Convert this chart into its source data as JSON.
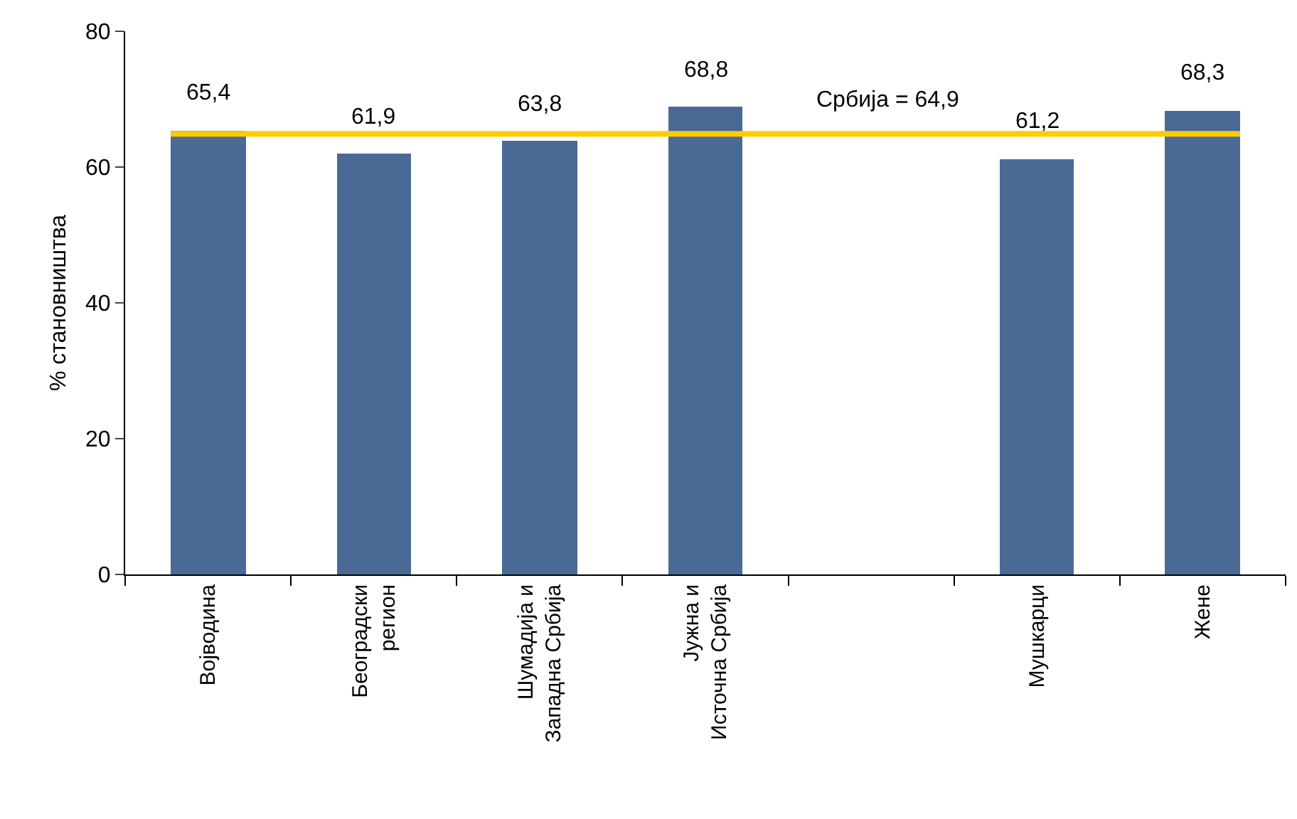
{
  "chart_data": {
    "type": "bar",
    "ylabel": "% становништва",
    "categories": [
      "Војводина",
      "Београдски регион",
      "Шумадија и Западна Србија",
      "Јужна и Источна Србија",
      null,
      "Мушкарци",
      "Жене"
    ],
    "values": [
      65.4,
      61.9,
      63.8,
      68.8,
      null,
      61.2,
      68.3
    ],
    "value_labels": [
      "65,4",
      "61,9",
      "63,8",
      "68,8",
      null,
      "61,2",
      "68,3"
    ],
    "color": "#4a6a96",
    "ylim": [
      0,
      80
    ],
    "yticks": [
      0,
      20,
      40,
      60,
      80
    ],
    "ref_lines": [
      {
        "axis": "y",
        "value": 64.9,
        "label": "Србија = 64,9",
        "color": "#ffcc00"
      }
    ],
    "grid": false,
    "legend": false
  }
}
